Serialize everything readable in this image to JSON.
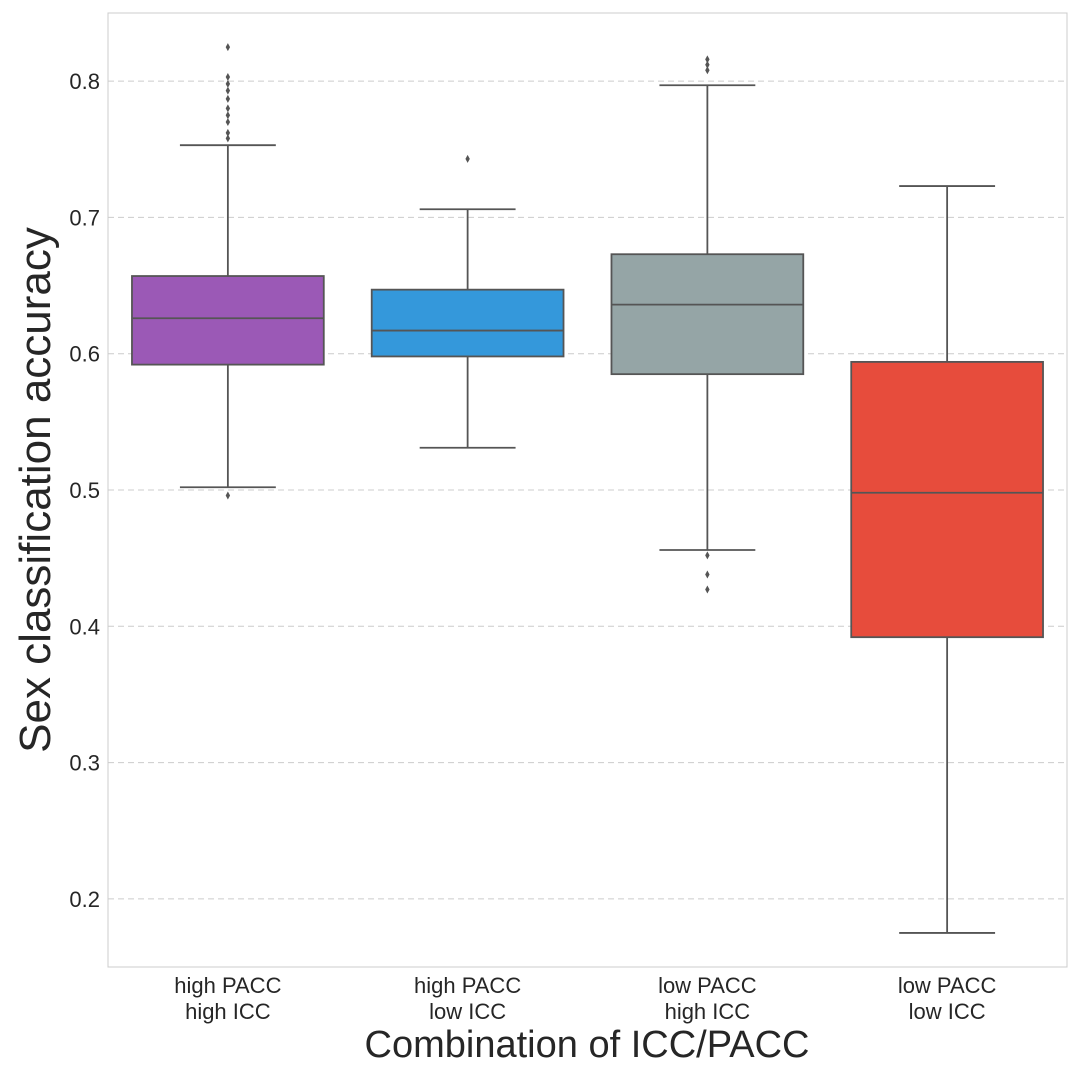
{
  "chart_data": {
    "type": "box",
    "title": "",
    "xlabel": "Combination of ICC/PACC",
    "ylabel": "Sex classification accuracy",
    "ylim": [
      0.15,
      0.85
    ],
    "yticks": [
      "0.2",
      "0.3",
      "0.4",
      "0.5",
      "0.6",
      "0.7",
      "0.8"
    ],
    "grid": true,
    "categories": [
      {
        "line1": "high PACC",
        "line2": "high ICC"
      },
      {
        "line1": "high PACC",
        "line2": "low ICC"
      },
      {
        "line1": "low PACC",
        "line2": "high ICC"
      },
      {
        "line1": "low PACC",
        "line2": "low ICC"
      }
    ],
    "boxes": [
      {
        "whisker_low": 0.502,
        "q1": 0.592,
        "median": 0.626,
        "q3": 0.657,
        "whisker_high": 0.753,
        "outliers": [
          0.496,
          0.758,
          0.762,
          0.77,
          0.775,
          0.78,
          0.787,
          0.793,
          0.798,
          0.803,
          0.825
        ],
        "color": "#9b59b6"
      },
      {
        "whisker_low": 0.531,
        "q1": 0.598,
        "median": 0.617,
        "q3": 0.647,
        "whisker_high": 0.706,
        "outliers": [
          0.743
        ],
        "color": "#3498db"
      },
      {
        "whisker_low": 0.456,
        "q1": 0.585,
        "median": 0.636,
        "q3": 0.673,
        "whisker_high": 0.797,
        "outliers": [
          0.427,
          0.438,
          0.452,
          0.808,
          0.812,
          0.816
        ],
        "color": "#95a5a6"
      },
      {
        "whisker_low": 0.175,
        "q1": 0.392,
        "median": 0.498,
        "q3": 0.594,
        "whisker_high": 0.723,
        "outliers": [],
        "color": "#e74c3c"
      }
    ]
  }
}
